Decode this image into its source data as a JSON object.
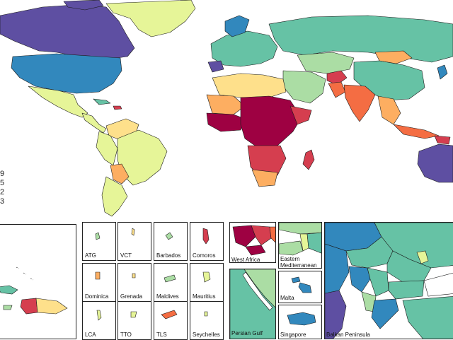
{
  "colors": {
    "c1": "#9e0142",
    "c2": "#d53e4f",
    "c3": "#f46d43",
    "c4": "#fdae61",
    "c5": "#fee08b",
    "c6": "#e6f598",
    "c7": "#abdda4",
    "c8": "#66c2a5",
    "c9": "#3288bd",
    "c10": "#5e4fa2",
    "ocean": "#ffffff",
    "border": "#1a1a1a"
  },
  "legend": {
    "visible_digits": [
      "9",
      "5",
      "2",
      "3"
    ]
  },
  "small_states": [
    {
      "label": "ATG",
      "color": "c7"
    },
    {
      "label": "VCT",
      "color": "c5"
    },
    {
      "label": "Barbados",
      "color": "c7"
    },
    {
      "label": "Comoros",
      "color": "c2"
    },
    {
      "label": "Dominica",
      "color": "c4"
    },
    {
      "label": "Grenada",
      "color": "c5"
    },
    {
      "label": "Maldives",
      "color": "c7"
    },
    {
      "label": "Mauritius",
      "color": "c6"
    },
    {
      "label": "LCA",
      "color": "c6"
    },
    {
      "label": "TTO",
      "color": "c6"
    },
    {
      "label": "TLS",
      "color": "c3"
    },
    {
      "label": "Seychelles",
      "color": "c6"
    }
  ],
  "regional_insets": [
    {
      "label": "West Africa"
    },
    {
      "label": "Eastern Mediterranean"
    },
    {
      "label": "Persian Gulf"
    },
    {
      "label": "Malta"
    },
    {
      "label": "Singapore"
    },
    {
      "label": "Balkan Peninsula"
    }
  ]
}
